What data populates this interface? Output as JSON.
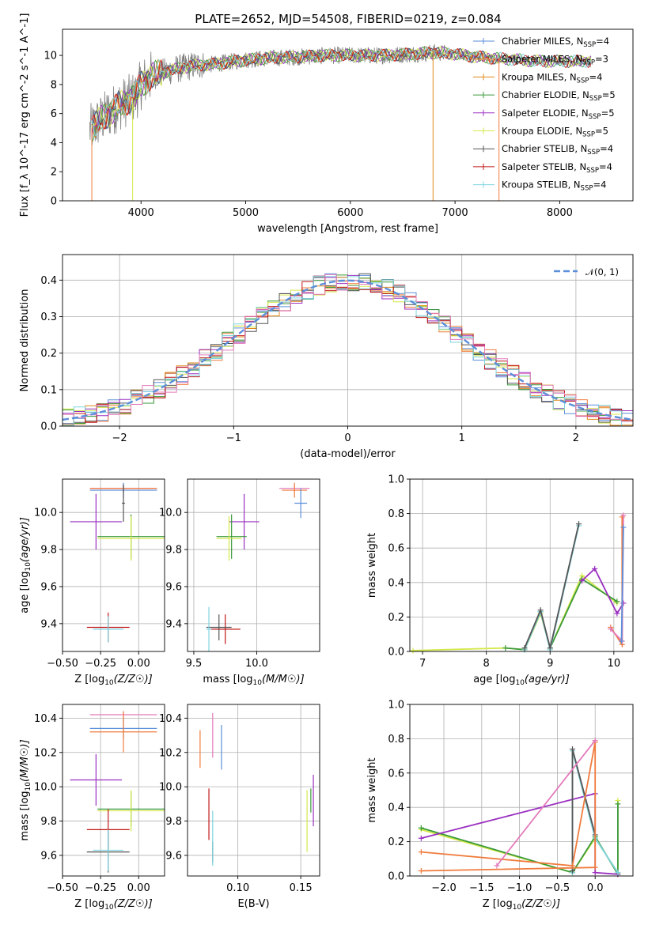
{
  "title": "PLATE=2652, MJD=54508, FIBERID=0219, z=0.084",
  "colors": {
    "Chabrier MILES": "#5b8fd9",
    "Salpeter MILES": "#f07c3e",
    "Kroupa MILES": "#e08a1a",
    "Chabrier ELODIE": "#3a9a3a",
    "Salpeter ELODIE": "#9b30c0",
    "Kroupa ELODIE": "#d4e84a",
    "Chabrier STELIB": "#555555",
    "Salpeter STELIB": "#c01818",
    "Kroupa STELIB": "#7fd4e0",
    "Pink": "#e37bbb",
    "Gauss": "#5b8fd9"
  },
  "chart_data": [
    {
      "type": "line",
      "title": "PLATE=2652, MJD=54508, FIBERID=0219, z=0.084",
      "xlabel": "wavelength [Angstrom, rest frame]",
      "ylabel": "Flux [f_λ 10^-17 erg cm^-2 s^-1 A^-1]",
      "xlim": [
        3250,
        8700
      ],
      "ylim": [
        0,
        11.8
      ],
      "xticks": [
        "4000",
        "5000",
        "6000",
        "7000",
        "8000"
      ],
      "yticks": [
        "0",
        "2",
        "4",
        "6",
        "8",
        "10"
      ],
      "legend_position": "top-right",
      "series": [
        {
          "name": "Chabrier MILES",
          "nssp": "4"
        },
        {
          "name": "Salpeter MILES",
          "nssp": "3"
        },
        {
          "name": "Kroupa MILES",
          "nssp": "4"
        },
        {
          "name": "Chabrier ELODIE",
          "nssp": "5"
        },
        {
          "name": "Salpeter ELODIE",
          "nssp": "5"
        },
        {
          "name": "Kroupa ELODIE",
          "nssp": "5"
        },
        {
          "name": "Chabrier STELIB",
          "nssp": "4"
        },
        {
          "name": "Salpeter STELIB",
          "nssp": "4"
        },
        {
          "name": "Kroupa STELIB",
          "nssp": "4"
        }
      ],
      "continuum": {
        "x": [
          3500,
          3650,
          3800,
          3950,
          4000,
          4100,
          4300,
          4500,
          4700,
          5000,
          5200,
          5500,
          5800,
          6000,
          6300,
          6600,
          6800,
          7000,
          7200,
          7400,
          7600,
          7800,
          8000,
          8200,
          8300
        ],
        "y": [
          4.8,
          5.8,
          6.6,
          7.2,
          8.0,
          8.6,
          9.0,
          9.3,
          9.4,
          9.7,
          9.8,
          9.9,
          10.0,
          10.0,
          10.0,
          10.1,
          10.2,
          10.1,
          9.9,
          9.8,
          9.7,
          9.6,
          9.6,
          9.6,
          9.6
        ]
      },
      "grid": false
    },
    {
      "type": "bar",
      "title": "",
      "xlabel": "(data-model)/error",
      "ylabel": "Normed distribution",
      "xlim": [
        -2.5,
        2.5
      ],
      "ylim": [
        0,
        0.47
      ],
      "xticks": [
        "−2",
        "−1",
        "0",
        "1",
        "2"
      ],
      "yticks": [
        "0.0",
        "0.1",
        "0.2",
        "0.3",
        "0.4"
      ],
      "legend": "𝒩(0, 1)",
      "legend_position": "top-right",
      "histogram_bin_width": 0.1,
      "reference_curve": "gaussian mean 0 sigma 1",
      "grid": true
    },
    {
      "type": "scatter",
      "xlabel": "Z [log10(Z/Z☉)]",
      "ylabel": "age [log10(age/yr)]",
      "xlim": [
        -0.5,
        0.17
      ],
      "ylim": [
        9.25,
        10.18
      ],
      "xticks": [
        "−0.50",
        "−0.25",
        "0.00"
      ],
      "yticks": [
        "9.4",
        "9.6",
        "9.8",
        "10.0"
      ],
      "errorbars": [
        {
          "x": -0.1,
          "xerr": 0.22,
          "y": 10.13,
          "yerr": 0.02,
          "color": "Pink"
        },
        {
          "x": -0.1,
          "xerr": 0.22,
          "y": 10.13,
          "yerr": 0.02,
          "color": "Salpeter MILES"
        },
        {
          "x": -0.1,
          "xerr": 0.22,
          "y": 10.12,
          "yerr": 0.04,
          "color": "Chabrier MILES"
        },
        {
          "x": -0.1,
          "xerr": 0.01,
          "y": 10.05,
          "yerr": 0.1,
          "color": "Chabrier STELIB"
        },
        {
          "x": -0.28,
          "xerr": 0.17,
          "y": 9.95,
          "yerr": 0.15,
          "color": "Salpeter ELODIE"
        },
        {
          "x": -0.05,
          "xerr": 0.22,
          "y": 9.87,
          "yerr": 0.12,
          "color": "Chabrier ELODIE"
        },
        {
          "x": -0.05,
          "xerr": 0.22,
          "y": 9.86,
          "yerr": 0.12,
          "color": "Kroupa ELODIE"
        },
        {
          "x": -0.2,
          "xerr": 0.14,
          "y": 9.38,
          "yerr": 0.08,
          "color": "Salpeter STELIB"
        },
        {
          "x": -0.2,
          "xerr": 0.1,
          "y": 9.37,
          "yerr": 0.07,
          "color": "Kroupa STELIB"
        }
      ],
      "grid": true
    },
    {
      "type": "scatter",
      "xlabel": "mass [log10(M/M☉)]",
      "ylabel": "",
      "xlim": [
        9.45,
        10.5
      ],
      "ylim": [
        9.25,
        10.18
      ],
      "xticks": [
        "9.5",
        "10.0"
      ],
      "yticks": [
        "9.4",
        "9.6",
        "9.8",
        "10.0"
      ],
      "errorbars": [
        {
          "x": 10.3,
          "xerr": 0.12,
          "y": 10.13,
          "yerr": 0.02,
          "color": "Pink"
        },
        {
          "x": 10.3,
          "xerr": 0.1,
          "y": 10.12,
          "yerr": 0.04,
          "color": "Salpeter MILES"
        },
        {
          "x": 10.35,
          "xerr": 0.05,
          "y": 10.05,
          "yerr": 0.08,
          "color": "Chabrier MILES"
        },
        {
          "x": 9.9,
          "xerr": 0.12,
          "y": 9.95,
          "yerr": 0.15,
          "color": "Salpeter ELODIE"
        },
        {
          "x": 9.8,
          "xerr": 0.12,
          "y": 9.87,
          "yerr": 0.12,
          "color": "Chabrier ELODIE"
        },
        {
          "x": 9.78,
          "xerr": 0.1,
          "y": 9.86,
          "yerr": 0.12,
          "color": "Kroupa ELODIE"
        },
        {
          "x": 9.75,
          "xerr": 0.12,
          "y": 9.37,
          "yerr": 0.08,
          "color": "Salpeter STELIB"
        },
        {
          "x": 9.7,
          "xerr": 0.1,
          "y": 9.38,
          "yerr": 0.07,
          "color": "Chabrier STELIB"
        },
        {
          "x": 9.62,
          "xerr": 0.02,
          "y": 9.37,
          "yerr": 0.12,
          "color": "Kroupa STELIB"
        }
      ],
      "grid": true
    },
    {
      "type": "line",
      "xlabel": "age [log10(age/yr)]",
      "ylabel": "mass weight",
      "xlim": [
        6.8,
        10.3
      ],
      "ylim": [
        0,
        1.0
      ],
      "xticks": [
        "7",
        "8",
        "9",
        "10"
      ],
      "yticks": [
        "0.0",
        "0.2",
        "0.4",
        "0.6",
        "0.8",
        "1.0"
      ],
      "series": [
        {
          "color": "Kroupa ELODIE",
          "x": [
            6.85,
            8.3,
            8.6,
            8.85,
            9.0,
            9.5,
            10.05
          ],
          "y": [
            0.005,
            0.02,
            0.01,
            0.22,
            0.02,
            0.44,
            0.28
          ]
        },
        {
          "color": "Chabrier ELODIE",
          "x": [
            8.3,
            8.6,
            8.85,
            9.0,
            9.5,
            10.05
          ],
          "y": [
            0.02,
            0.01,
            0.23,
            0.02,
            0.42,
            0.29
          ]
        },
        {
          "color": "Salpeter ELODIE",
          "x": [
            9.5,
            9.7,
            10.05,
            10.15
          ],
          "y": [
            0.41,
            0.48,
            0.22,
            0.28
          ]
        },
        {
          "color": "Kroupa STELIB",
          "x": [
            8.6,
            8.85,
            9.0,
            9.45
          ],
          "y": [
            0.01,
            0.23,
            0.01,
            0.73
          ]
        },
        {
          "color": "Chabrier STELIB",
          "x": [
            8.6,
            8.85,
            9.0,
            9.45
          ],
          "y": [
            0.02,
            0.24,
            0.02,
            0.74
          ]
        },
        {
          "color": "Salpeter MILES",
          "x": [
            9.95,
            10.13,
            10.13
          ],
          "y": [
            0.14,
            0.04,
            0.78
          ]
        },
        {
          "color": "Pink",
          "x": [
            9.95,
            10.13,
            10.15
          ],
          "y": [
            0.13,
            0.06,
            0.79
          ]
        },
        {
          "color": "Chabrier MILES",
          "x": [
            10.12,
            10.15
          ],
          "y": [
            0.06,
            0.72
          ]
        }
      ],
      "grid": true
    },
    {
      "type": "scatter",
      "xlabel": "Z [log10(Z/Z☉)]",
      "ylabel": "mass [log10(M/M☉)]",
      "xlim": [
        -0.5,
        0.17
      ],
      "ylim": [
        9.48,
        10.48
      ],
      "xticks": [
        "−0.50",
        "−0.25",
        "0.00"
      ],
      "yticks": [
        "9.6",
        "9.8",
        "10.0",
        "10.2",
        "10.4"
      ],
      "errorbars": [
        {
          "x": -0.1,
          "xerr": 0.22,
          "y": 10.42,
          "yerr": 0.02,
          "color": "Pink"
        },
        {
          "x": -0.1,
          "xerr": 0.22,
          "y": 10.34,
          "yerr": 0.06,
          "color": "Chabrier MILES"
        },
        {
          "x": -0.1,
          "xerr": 0.22,
          "y": 10.32,
          "yerr": 0.12,
          "color": "Salpeter MILES"
        },
        {
          "x": -0.28,
          "xerr": 0.17,
          "y": 10.04,
          "yerr": 0.15,
          "color": "Salpeter ELODIE"
        },
        {
          "x": -0.05,
          "xerr": 0.22,
          "y": 9.87,
          "yerr": 0.1,
          "color": "Chabrier ELODIE"
        },
        {
          "x": -0.05,
          "xerr": 0.22,
          "y": 9.86,
          "yerr": 0.12,
          "color": "Kroupa ELODIE"
        },
        {
          "x": -0.2,
          "xerr": 0.14,
          "y": 9.75,
          "yerr": 0.12,
          "color": "Salpeter STELIB"
        },
        {
          "x": -0.2,
          "xerr": 0.14,
          "y": 9.62,
          "yerr": 0.12,
          "color": "Chabrier STELIB"
        },
        {
          "x": -0.2,
          "xerr": 0.1,
          "y": 9.63,
          "yerr": 0.12,
          "color": "Kroupa STELIB"
        }
      ],
      "grid": true
    },
    {
      "type": "scatter",
      "xlabel": "E(B-V)",
      "ylabel": "",
      "xlim": [
        0.06,
        0.165
      ],
      "ylim": [
        9.48,
        10.48
      ],
      "xticks": [
        "0.10",
        "0.15"
      ],
      "yticks": [
        "9.6",
        "9.8",
        "10.0",
        "10.2",
        "10.4"
      ],
      "errorbars": [
        {
          "x": 0.07,
          "y": 10.22,
          "yerr": 0.11,
          "color": "Salpeter MILES"
        },
        {
          "x": 0.08,
          "y": 10.3,
          "yerr": 0.13,
          "color": "Pink"
        },
        {
          "x": 0.087,
          "y": 10.23,
          "yerr": 0.13,
          "color": "Chabrier MILES"
        },
        {
          "x": 0.077,
          "y": 9.84,
          "yerr": 0.15,
          "color": "Salpeter STELIB"
        },
        {
          "x": 0.08,
          "y": 9.62,
          "yerr": 0.06,
          "color": "Chabrier STELIB"
        },
        {
          "x": 0.08,
          "y": 9.7,
          "yerr": 0.16,
          "color": "Kroupa STELIB"
        },
        {
          "x": 0.155,
          "y": 9.8,
          "yerr": 0.18,
          "color": "Kroupa ELODIE"
        },
        {
          "x": 0.158,
          "y": 9.92,
          "yerr": 0.07,
          "color": "Chabrier ELODIE"
        },
        {
          "x": 0.16,
          "y": 9.92,
          "yerr": 0.15,
          "color": "Salpeter ELODIE"
        }
      ],
      "grid": true
    },
    {
      "type": "line",
      "xlabel": "Z [log10(Z/Z☉)]",
      "ylabel": "mass weight",
      "xlim": [
        -2.45,
        0.5
      ],
      "ylim": [
        0,
        1.0
      ],
      "xticks": [
        "−2.0",
        "−1.5",
        "−1.0",
        "−0.5",
        "0.0"
      ],
      "yticks": [
        "0.0",
        "0.2",
        "0.4",
        "0.6",
        "0.8",
        "1.0"
      ],
      "series": [
        {
          "color": "Kroupa ELODIE",
          "x": [
            -2.3,
            -0.3,
            0.0,
            0.3,
            0.3,
            0.3
          ],
          "y": [
            0.27,
            0.02,
            0.22,
            0.02,
            0.44,
            0.02
          ]
        },
        {
          "color": "Chabrier ELODIE",
          "x": [
            -2.3,
            -0.3,
            0.0,
            0.3,
            0.3
          ],
          "y": [
            0.28,
            0.02,
            0.23,
            0.01,
            0.42
          ]
        },
        {
          "color": "Salpeter ELODIE",
          "x": [
            -2.3,
            0.0,
            0.0,
            0.3
          ],
          "y": [
            0.22,
            0.48,
            0.02,
            0.01
          ]
        },
        {
          "color": "Kroupa STELIB",
          "x": [
            -0.3,
            -0.3,
            0.0,
            0.3
          ],
          "y": [
            0.02,
            0.73,
            0.22,
            0.02
          ]
        },
        {
          "color": "Chabrier STELIB",
          "x": [
            -0.3,
            -0.3,
            0.0
          ],
          "y": [
            0.03,
            0.74,
            0.24
          ]
        },
        {
          "color": "Salpeter MILES",
          "x": [
            -2.3,
            -0.3,
            0.0,
            0.0,
            -2.3
          ],
          "y": [
            0.14,
            0.06,
            0.78,
            0.05,
            0.03
          ]
        },
        {
          "color": "Pink",
          "x": [
            -1.3,
            0.0
          ],
          "y": [
            0.06,
            0.79
          ]
        }
      ],
      "grid": true
    }
  ]
}
